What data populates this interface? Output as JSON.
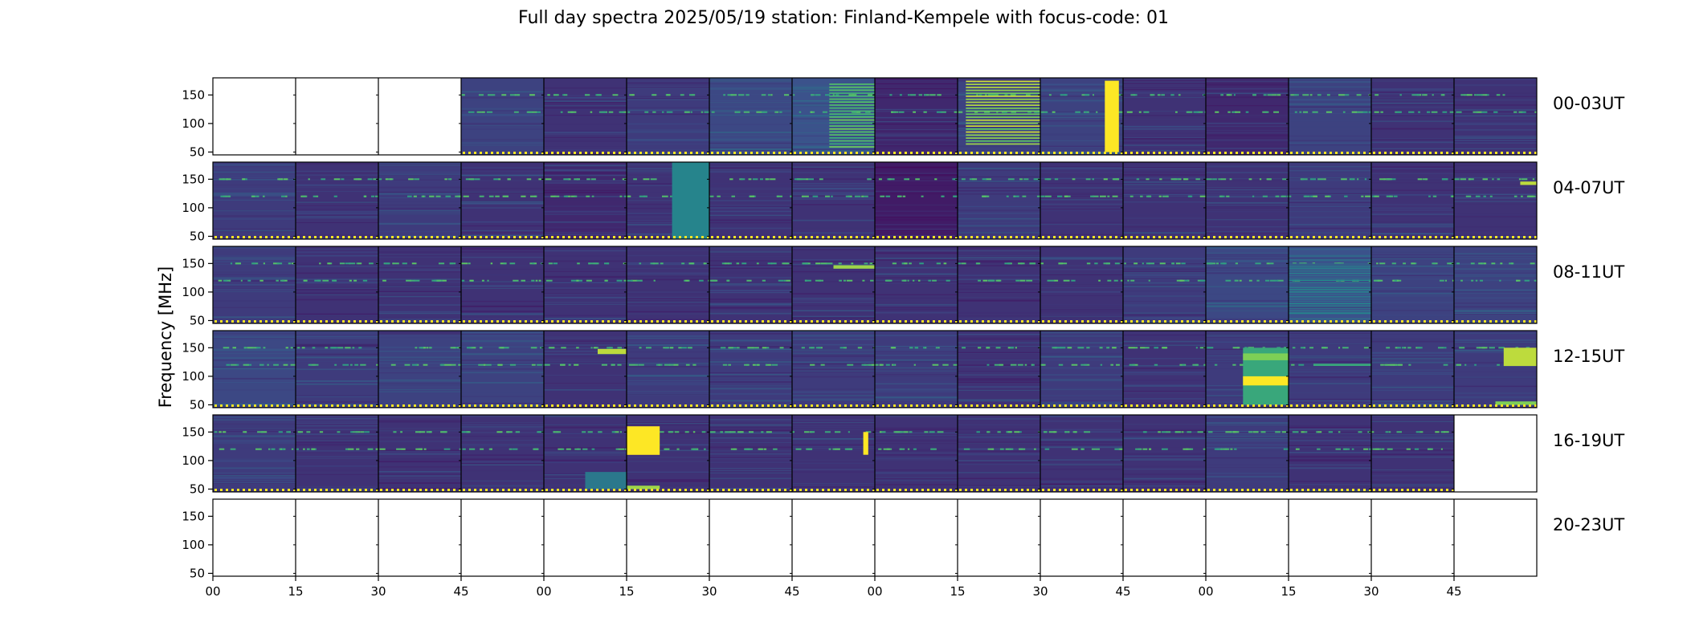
{
  "chart_data": {
    "type": "heatmap",
    "title": "Full day spectra 2025/05/19 station: Finland-Kempele with focus-code: 01",
    "ylabel": "Frequency [MHz]",
    "y_ticks": [
      50,
      100,
      150
    ],
    "ylim": [
      45,
      180
    ],
    "x_tick_labels": [
      "00",
      "15",
      "30",
      "45",
      "00",
      "15",
      "30",
      "45",
      "00",
      "15",
      "30",
      "45",
      "00",
      "15",
      "30",
      "45"
    ],
    "rows": [
      {
        "label": "00-03UT",
        "panels": [
          {
            "state": "empty"
          },
          {
            "state": "empty"
          },
          {
            "state": "empty"
          },
          {
            "state": "data",
            "level": 0.2
          },
          {
            "state": "data",
            "level": 0.15
          },
          {
            "state": "data",
            "level": 0.18
          },
          {
            "state": "data",
            "level": 0.22
          },
          {
            "state": "data",
            "level": 0.25,
            "bands": [
              {
                "f0": 55,
                "f1": 170,
                "x0": 0.45,
                "x1": 1.0,
                "striped": true,
                "intensity": 0.7
              }
            ]
          },
          {
            "state": "data",
            "level": 0.12
          },
          {
            "state": "data",
            "level": 0.2,
            "bands": [
              {
                "f0": 60,
                "f1": 175,
                "x0": 0.1,
                "x1": 1.0,
                "striped": true,
                "intensity": 0.85
              }
            ]
          },
          {
            "state": "data",
            "level": 0.2,
            "bands": [
              {
                "f0": 50,
                "f1": 175,
                "x0": 0.78,
                "x1": 0.95,
                "striped": false,
                "intensity": 1.0
              }
            ]
          },
          {
            "state": "data",
            "level": 0.15
          },
          {
            "state": "data",
            "level": 0.12
          },
          {
            "state": "data",
            "level": 0.2
          },
          {
            "state": "data",
            "level": 0.15
          },
          {
            "state": "data",
            "level": 0.15
          }
        ]
      },
      {
        "label": "04-07UT",
        "panels": [
          {
            "state": "data",
            "level": 0.18
          },
          {
            "state": "data",
            "level": 0.15
          },
          {
            "state": "data",
            "level": 0.18
          },
          {
            "state": "data",
            "level": 0.15
          },
          {
            "state": "data",
            "level": 0.12
          },
          {
            "state": "data",
            "level": 0.15,
            "bands": [
              {
                "f0": 45,
                "f1": 180,
                "x0": 0.55,
                "x1": 1.0,
                "striped": false,
                "intensity": 0.45
              }
            ]
          },
          {
            "state": "data",
            "level": 0.15
          },
          {
            "state": "data",
            "level": 0.15
          },
          {
            "state": "data",
            "level": 0.08
          },
          {
            "state": "data",
            "level": 0.18
          },
          {
            "state": "data",
            "level": 0.15
          },
          {
            "state": "data",
            "level": 0.15
          },
          {
            "state": "data",
            "level": 0.15
          },
          {
            "state": "data",
            "level": 0.18
          },
          {
            "state": "data",
            "level": 0.15
          },
          {
            "state": "data",
            "level": 0.15,
            "bands": [
              {
                "f0": 140,
                "f1": 146,
                "x0": 0.8,
                "x1": 1.0,
                "striped": false,
                "intensity": 0.9
              }
            ]
          }
        ]
      },
      {
        "label": "08-11UT",
        "panels": [
          {
            "state": "data",
            "level": 0.18
          },
          {
            "state": "data",
            "level": 0.15
          },
          {
            "state": "data",
            "level": 0.15
          },
          {
            "state": "data",
            "level": 0.15
          },
          {
            "state": "data",
            "level": 0.15
          },
          {
            "state": "data",
            "level": 0.15
          },
          {
            "state": "data",
            "level": 0.15
          },
          {
            "state": "data",
            "level": 0.15,
            "bands": [
              {
                "f0": 141,
                "f1": 147,
                "x0": 0.5,
                "x1": 1.0,
                "striped": false,
                "intensity": 0.85
              }
            ]
          },
          {
            "state": "data",
            "level": 0.15
          },
          {
            "state": "data",
            "level": 0.15
          },
          {
            "state": "data",
            "level": 0.15
          },
          {
            "state": "data",
            "level": 0.18
          },
          {
            "state": "data",
            "level": 0.22
          },
          {
            "state": "data",
            "level": 0.25,
            "bands": [
              {
                "f0": 60,
                "f1": 150,
                "x0": 0.0,
                "x1": 1.0,
                "striped": true,
                "intensity": 0.4
              }
            ]
          },
          {
            "state": "data",
            "level": 0.2
          },
          {
            "state": "data",
            "level": 0.2
          }
        ]
      },
      {
        "label": "12-15UT",
        "panels": [
          {
            "state": "data",
            "level": 0.22
          },
          {
            "state": "data",
            "level": 0.18
          },
          {
            "state": "data",
            "level": 0.2
          },
          {
            "state": "data",
            "level": 0.2
          },
          {
            "state": "data",
            "level": 0.15,
            "bands": [
              {
                "f0": 139,
                "f1": 148,
                "x0": 0.65,
                "x1": 1.0,
                "striped": false,
                "intensity": 0.9
              }
            ]
          },
          {
            "state": "data",
            "level": 0.18
          },
          {
            "state": "data",
            "level": 0.18
          },
          {
            "state": "data",
            "level": 0.18
          },
          {
            "state": "data",
            "level": 0.18
          },
          {
            "state": "data",
            "level": 0.15
          },
          {
            "state": "data",
            "level": 0.18
          },
          {
            "state": "data",
            "level": 0.15
          },
          {
            "state": "data",
            "level": 0.18,
            "bands": [
              {
                "f0": 50,
                "f1": 150,
                "x0": 0.45,
                "x1": 1.0,
                "striped": false,
                "intensity": 0.6
              },
              {
                "f0": 84,
                "f1": 100,
                "x0": 0.45,
                "x1": 1.0,
                "striped": false,
                "intensity": 1.0
              },
              {
                "f0": 128,
                "f1": 140,
                "x0": 0.45,
                "x1": 1.0,
                "striped": false,
                "intensity": 0.8
              }
            ]
          },
          {
            "state": "data",
            "level": 0.18,
            "bands": [
              {
                "f0": 118,
                "f1": 122,
                "x0": 0.3,
                "x1": 1.0,
                "striped": false,
                "intensity": 0.6
              }
            ]
          },
          {
            "state": "data",
            "level": 0.18
          },
          {
            "state": "data",
            "level": 0.18,
            "bands": [
              {
                "f0": 118,
                "f1": 150,
                "x0": 0.6,
                "x1": 1.0,
                "striped": false,
                "intensity": 0.9
              },
              {
                "f0": 50,
                "f1": 56,
                "x0": 0.5,
                "x1": 1.0,
                "striped": false,
                "intensity": 0.8
              }
            ]
          }
        ]
      },
      {
        "label": "16-19UT",
        "panels": [
          {
            "state": "data",
            "level": 0.18
          },
          {
            "state": "data",
            "level": 0.15
          },
          {
            "state": "data",
            "level": 0.15
          },
          {
            "state": "data",
            "level": 0.15
          },
          {
            "state": "data",
            "level": 0.15,
            "bands": [
              {
                "f0": 50,
                "f1": 80,
                "x0": 0.5,
                "x1": 1.0,
                "striped": false,
                "intensity": 0.4
              }
            ]
          },
          {
            "state": "data",
            "level": 0.15,
            "bands": [
              {
                "f0": 110,
                "f1": 160,
                "x0": 0.0,
                "x1": 0.4,
                "striped": false,
                "intensity": 1.0
              },
              {
                "f0": 50,
                "f1": 56,
                "x0": 0.0,
                "x1": 0.4,
                "striped": false,
                "intensity": 0.85
              }
            ]
          },
          {
            "state": "data",
            "level": 0.15
          },
          {
            "state": "data",
            "level": 0.15,
            "bands": [
              {
                "f0": 110,
                "f1": 150,
                "x0": 0.86,
                "x1": 0.92,
                "striped": false,
                "intensity": 1.0
              }
            ]
          },
          {
            "state": "data",
            "level": 0.15
          },
          {
            "state": "data",
            "level": 0.15
          },
          {
            "state": "data",
            "level": 0.15
          },
          {
            "state": "data",
            "level": 0.15
          },
          {
            "state": "data",
            "level": 0.18
          },
          {
            "state": "data",
            "level": 0.15
          },
          {
            "state": "data",
            "level": 0.15
          },
          {
            "state": "empty"
          }
        ]
      },
      {
        "label": "20-23UT",
        "panels": [
          {
            "state": "empty"
          },
          {
            "state": "empty"
          },
          {
            "state": "empty"
          },
          {
            "state": "empty"
          },
          {
            "state": "empty"
          },
          {
            "state": "empty"
          },
          {
            "state": "empty"
          },
          {
            "state": "empty"
          },
          {
            "state": "empty"
          },
          {
            "state": "empty"
          },
          {
            "state": "empty"
          },
          {
            "state": "empty"
          },
          {
            "state": "empty"
          },
          {
            "state": "empty"
          },
          {
            "state": "empty"
          },
          {
            "state": "empty"
          }
        ]
      }
    ],
    "colormap": [
      "#440154",
      "#3b528b",
      "#21918c",
      "#5ec962",
      "#fde725"
    ]
  }
}
